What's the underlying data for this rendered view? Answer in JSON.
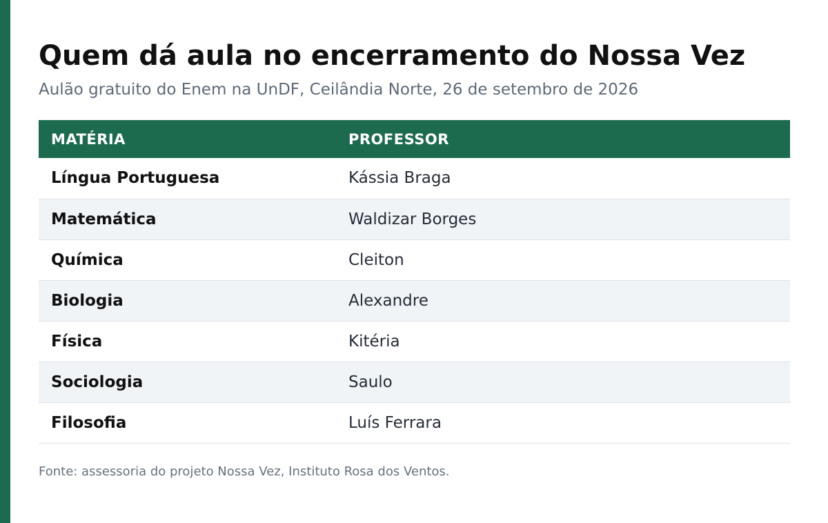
{
  "colors": {
    "accent": "#1c6b4f",
    "header_bg": "#1c6b4f",
    "row_alt_bg": "#f0f4f7"
  },
  "title": "Quem dá aula no encerramento do Nossa Vez",
  "subtitle": "Aulão gratuito do Enem na UnDF, Ceilândia Norte, 26 de setembro de 2026",
  "table": {
    "headers": [
      "MATÉRIA",
      "PROFESSOR"
    ],
    "rows": [
      {
        "subject": "Língua Portuguesa",
        "teacher": "Kássia Braga"
      },
      {
        "subject": "Matemática",
        "teacher": "Waldizar Borges"
      },
      {
        "subject": "Química",
        "teacher": "Cleiton"
      },
      {
        "subject": "Biologia",
        "teacher": "Alexandre"
      },
      {
        "subject": "Física",
        "teacher": "Kitéria"
      },
      {
        "subject": "Sociologia",
        "teacher": "Saulo"
      },
      {
        "subject": "Filosofia",
        "teacher": "Luís Ferrara"
      }
    ]
  },
  "source": "Fonte: assessoria do projeto Nossa Vez, Instituto Rosa dos Ventos."
}
